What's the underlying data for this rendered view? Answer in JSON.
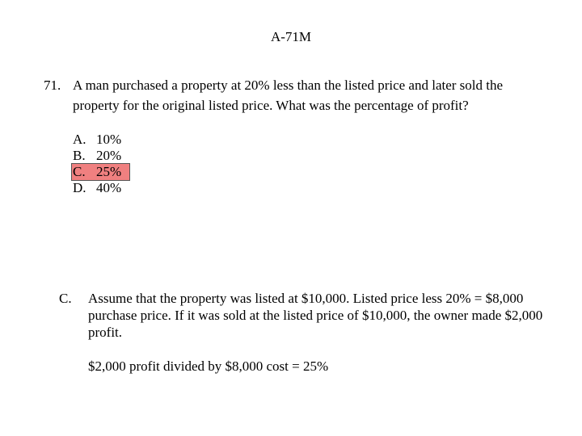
{
  "slide": {
    "title": "A-71M"
  },
  "question": {
    "number": "71.",
    "text": "A man purchased a property at 20% less than the listed price and later sold the property for the original listed price.  What was the percentage of profit?"
  },
  "options": [
    {
      "letter": "A.",
      "value": "10%"
    },
    {
      "letter": "B.",
      "value": "20%"
    },
    {
      "letter": "C.",
      "value": "25%"
    },
    {
      "letter": "D.",
      "value": "40%"
    }
  ],
  "highlight_color": "#f08080",
  "answer": {
    "letter": "C.",
    "explanation": "Assume that the property was listed at $10,000.  Listed price less 20% = $8,000 purchase price.  If it was sold at the listed price of $10,000, the owner made $2,000 profit.",
    "calculation": "$2,000 profit divided by $8,000 cost = 25%"
  }
}
